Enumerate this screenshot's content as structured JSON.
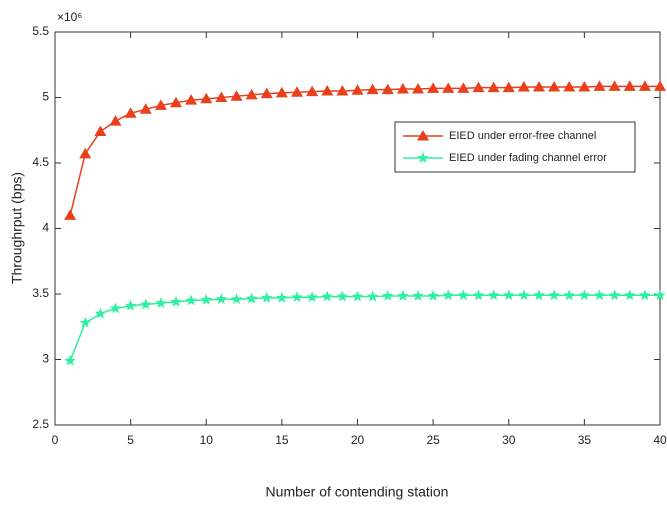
{
  "chart_data": {
    "type": "line",
    "y_scale_label": "×10⁶",
    "xlabel": "Number of contending station",
    "ylabel": "Throughrput (bps)",
    "x": [
      1,
      2,
      3,
      4,
      5,
      6,
      7,
      8,
      9,
      10,
      11,
      12,
      13,
      14,
      15,
      16,
      17,
      18,
      19,
      20,
      21,
      22,
      23,
      24,
      25,
      26,
      27,
      28,
      29,
      30,
      31,
      32,
      33,
      34,
      35,
      36,
      37,
      38,
      39,
      40
    ],
    "series": [
      {
        "name": "EIED under error-free channel",
        "color": "#e8401c",
        "marker": "triangle",
        "values": [
          4.1,
          4.57,
          4.74,
          4.82,
          4.88,
          4.91,
          4.94,
          4.96,
          4.98,
          4.99,
          5.0,
          5.01,
          5.02,
          5.03,
          5.035,
          5.04,
          5.045,
          5.05,
          5.05,
          5.055,
          5.06,
          5.06,
          5.065,
          5.065,
          5.07,
          5.07,
          5.07,
          5.075,
          5.075,
          5.075,
          5.08,
          5.08,
          5.08,
          5.08,
          5.08,
          5.085,
          5.085,
          5.085,
          5.085,
          5.085
        ]
      },
      {
        "name": "EIED under fading channel error",
        "color": "#2ef0a0",
        "marker": "star",
        "values": [
          2.99,
          3.28,
          3.35,
          3.39,
          3.41,
          3.42,
          3.43,
          3.44,
          3.45,
          3.455,
          3.46,
          3.46,
          3.465,
          3.47,
          3.47,
          3.475,
          3.475,
          3.48,
          3.48,
          3.48,
          3.48,
          3.485,
          3.485,
          3.485,
          3.485,
          3.49,
          3.49,
          3.49,
          3.49,
          3.49,
          3.49,
          3.49,
          3.49,
          3.49,
          3.49,
          3.49,
          3.49,
          3.49,
          3.49,
          3.49
        ]
      }
    ],
    "xlim": [
      0,
      40
    ],
    "xticks": [
      0,
      5,
      10,
      15,
      20,
      25,
      30,
      35,
      40
    ],
    "ylim": [
      2.5,
      5.5
    ],
    "yticks": [
      2.5,
      3,
      3.5,
      4,
      4.5,
      5,
      5.5
    ],
    "legend_position": "right"
  }
}
